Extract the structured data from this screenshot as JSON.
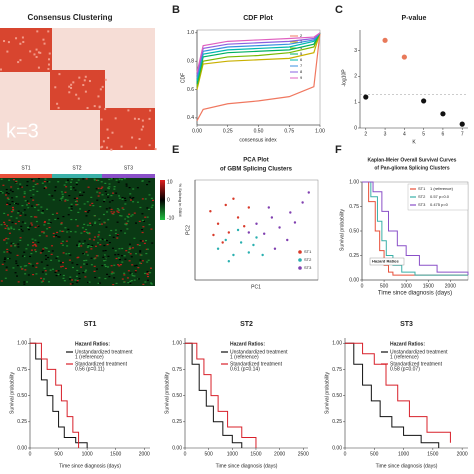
{
  "panel_labels": [
    "B",
    "C",
    "E",
    "F"
  ],
  "a": {
    "title": "Consensus Clustering",
    "annotation": "k=3"
  },
  "b": {
    "type": "line",
    "title": "CDF Plot",
    "xlabel": "consensus index",
    "ylabel": "CDF",
    "xlim": [
      0,
      1
    ],
    "ylim": [
      0.35,
      1.02
    ],
    "xticks": [
      {
        "value": 0,
        "label": "0.00"
      },
      {
        "value": 0.25,
        "label": "0.25"
      },
      {
        "value": 0.5,
        "label": "0.50"
      },
      {
        "value": 0.75,
        "label": "0.75"
      },
      {
        "value": 1,
        "label": "1.00"
      }
    ],
    "yticks": [
      0.4,
      0.6,
      0.8,
      {
        "value": 1,
        "label": "1.0"
      }
    ],
    "x": [
      0,
      0.05,
      0.25,
      0.5,
      0.75,
      0.95,
      1
    ],
    "series": [
      {
        "name": "2",
        "color": "#f07860",
        "values": [
          0.38,
          0.46,
          0.5,
          0.52,
          0.55,
          0.62,
          1
        ]
      },
      {
        "name": "3",
        "color": "#c9b000",
        "values": [
          0.6,
          0.78,
          0.8,
          0.81,
          0.82,
          0.86,
          1
        ]
      },
      {
        "name": "4",
        "color": "#7ab800",
        "values": [
          0.62,
          0.8,
          0.83,
          0.84,
          0.86,
          0.9,
          1
        ]
      },
      {
        "name": "5",
        "color": "#00b060",
        "values": [
          0.64,
          0.83,
          0.86,
          0.87,
          0.88,
          0.92,
          1
        ]
      },
      {
        "name": "6",
        "color": "#00b8b0",
        "values": [
          0.66,
          0.85,
          0.88,
          0.89,
          0.9,
          0.94,
          1
        ]
      },
      {
        "name": "7",
        "color": "#3a90e0",
        "values": [
          0.68,
          0.87,
          0.9,
          0.91,
          0.92,
          0.95,
          1
        ]
      },
      {
        "name": "8",
        "color": "#8a60e0",
        "values": [
          0.7,
          0.89,
          0.92,
          0.93,
          0.94,
          0.96,
          1
        ]
      },
      {
        "name": "9",
        "color": "#e060c0",
        "values": [
          0.72,
          0.91,
          0.94,
          0.95,
          0.96,
          0.97,
          1
        ]
      }
    ]
  },
  "c": {
    "type": "scatter",
    "title": "P-value",
    "xlabel": "K",
    "ylabel": "-log10P",
    "xlim": [
      1.7,
      7.3
    ],
    "ylim": [
      0,
      3.8
    ],
    "xticks": [
      2,
      3,
      4,
      5,
      6,
      7
    ],
    "yticks": [
      0,
      1,
      2,
      3
    ],
    "x": [
      2,
      3,
      4,
      5,
      6,
      7
    ],
    "values": [
      1.2,
      3.4,
      2.75,
      1.05,
      0.55,
      0.15
    ],
    "colors": [
      "#111",
      "#e8795a",
      "#e8795a",
      "#111",
      "#111",
      "#111"
    ],
    "threshold": 1.3
  },
  "d": {
    "groups": [
      "ST1",
      "ST2",
      "ST3"
    ],
    "group_colors": [
      "#e8503a",
      "#3ab0a8",
      "#8a50c8"
    ],
    "colorbar_ticks": [
      10,
      0,
      -10
    ],
    "colorbar_label": "% Splicing in GBM"
  },
  "e": {
    "type": "scatter",
    "title": "PCA Plot",
    "subtitle": "of GBM Splicing Clusters",
    "xlabel": "PC1",
    "ylabel": "PC2",
    "xlim": [
      -4,
      4
    ],
    "ylim": [
      -4,
      4
    ],
    "series": [
      {
        "name": "ST1",
        "color": "#d83a2a",
        "x": [
          -3,
          -2.5,
          -2,
          -1.8,
          -1.2,
          -0.8,
          -2.2,
          -1.5,
          -0.5,
          -2.8
        ],
        "values": [
          1.5,
          0.5,
          2,
          -0.2,
          1,
          0.3,
          -1,
          2.5,
          1.8,
          -0.4
        ]
      },
      {
        "name": "ST2",
        "color": "#2ab0b0",
        "x": [
          -2.5,
          -2,
          -1.5,
          -1,
          -0.5,
          0,
          -1.8,
          -1.2,
          -0.2,
          0.4
        ],
        "values": [
          -1.5,
          -0.8,
          -2,
          -1,
          -1.8,
          -0.6,
          -2.5,
          0,
          -1.2,
          -2
        ]
      },
      {
        "name": "ST3",
        "color": "#8040b0",
        "x": [
          0,
          0.5,
          1,
          1.5,
          2,
          2.5,
          3,
          1.2,
          0.8,
          2.2,
          -0.5,
          3.4
        ],
        "values": [
          0.5,
          -0.3,
          1,
          0.2,
          -0.8,
          0.6,
          2.2,
          -1.5,
          1.8,
          1.4,
          -0.2,
          3
        ]
      }
    ]
  },
  "f": {
    "type": "line",
    "title": "Kaplan-Meier Overall Survival Curves",
    "subtitle": "of Pan-glioma Splicing Clusters",
    "xlabel": "Time since diagnosis (days)",
    "ylabel": "Survival probability",
    "xlim": [
      0,
      2400
    ],
    "ylim": [
      0,
      1
    ],
    "xticks": [
      0,
      500,
      1000,
      1500,
      2000
    ],
    "yticks": [
      {
        "value": 0,
        "label": "0.00"
      },
      {
        "value": 0.25,
        "label": "0.25"
      },
      {
        "value": 0.5,
        "label": "0.50"
      },
      {
        "value": 0.75,
        "label": "0.75"
      },
      {
        "value": 1,
        "label": "1.00"
      }
    ],
    "legend_title": "Hazard Ratios",
    "series": [
      {
        "name": "ST1",
        "hr": "1 (reference)",
        "color": "#e8503a",
        "x": [
          0,
          150,
          300,
          400,
          500,
          600,
          700,
          900,
          2400
        ],
        "values": [
          1,
          0.8,
          0.5,
          0.3,
          0.15,
          0.08,
          0.05,
          0.05,
          0.05
        ]
      },
      {
        "name": "ST2",
        "hr": "0.57 p=0.0",
        "color": "#3ab0a8",
        "x": [
          0,
          200,
          350,
          450,
          550,
          700,
          900,
          1200,
          2400
        ],
        "values": [
          1,
          0.85,
          0.6,
          0.4,
          0.25,
          0.15,
          0.08,
          0.05,
          0.05
        ]
      },
      {
        "name": "ST3",
        "hr": "0.475 p=0",
        "color": "#8a50c8",
        "x": [
          0,
          250,
          450,
          600,
          800,
          1000,
          1300,
          1700,
          2400
        ],
        "values": [
          1,
          0.9,
          0.7,
          0.5,
          0.35,
          0.25,
          0.15,
          0.08,
          0.05
        ]
      }
    ]
  },
  "bottom": [
    {
      "type": "line",
      "title": "ST1",
      "xlim": [
        0,
        2100
      ],
      "xticks": [
        0,
        500,
        1000,
        1500,
        2000
      ],
      "ylabel": "Survival probability",
      "series": [
        {
          "name": "Unstandardized treatment",
          "hr": "1 (reference)",
          "color": "#111",
          "x": [
            0,
            100,
            200,
            300,
            400,
            500,
            600,
            800,
            1000
          ],
          "values": [
            1,
            0.85,
            0.65,
            0.5,
            0.35,
            0.2,
            0.1,
            0.05,
            0
          ]
        },
        {
          "name": "Standardized treatment",
          "hr": "0.56 (p=0.11)",
          "color": "#d8202a",
          "x": [
            0,
            200,
            300,
            450,
            550,
            650,
            750,
            850
          ],
          "values": [
            1,
            0.85,
            0.75,
            0.6,
            0.45,
            0.3,
            0.15,
            0
          ]
        }
      ]
    },
    {
      "type": "line",
      "title": "ST2",
      "xlim": [
        0,
        2600
      ],
      "xticks": [
        0,
        500,
        1000,
        1500,
        2000,
        2500
      ],
      "ylabel": "Survival probability",
      "series": [
        {
          "name": "Unstandardized treatment",
          "hr": "1 (reference)",
          "color": "#111",
          "x": [
            0,
            150,
            300,
            450,
            600,
            800,
            1000,
            1200
          ],
          "values": [
            1,
            0.8,
            0.55,
            0.4,
            0.25,
            0.12,
            0.05,
            0
          ]
        },
        {
          "name": "Standardized treatment",
          "hr": "0.61 (p=0.14)",
          "color": "#d8202a",
          "x": [
            0,
            250,
            400,
            550,
            700,
            900,
            1200,
            1500
          ],
          "values": [
            1,
            0.85,
            0.7,
            0.5,
            0.35,
            0.2,
            0.1,
            0
          ]
        }
      ]
    },
    {
      "type": "line",
      "title": "ST3",
      "xlim": [
        0,
        2100
      ],
      "xticks": [
        0,
        500,
        1000,
        1500,
        2000
      ],
      "ylabel": "Survival probability",
      "series": [
        {
          "name": "Unstandardized treatment",
          "hr": "1 (reference)",
          "color": "#111",
          "x": [
            0,
            150,
            300,
            450,
            600,
            800,
            1000,
            1300,
            1600
          ],
          "values": [
            1,
            0.8,
            0.6,
            0.45,
            0.3,
            0.2,
            0.12,
            0.05,
            0
          ]
        },
        {
          "name": "Standardized treatment",
          "hr": "0.58 (p=0.07)",
          "color": "#d8202a",
          "x": [
            0,
            300,
            500,
            700,
            900,
            1100,
            1400,
            1800
          ],
          "values": [
            1,
            0.9,
            0.8,
            0.6,
            0.45,
            0.3,
            0.15,
            0.05
          ]
        }
      ]
    }
  ],
  "bottom_common": {
    "xlabel": "Time since diagnosis (days)",
    "legend_title": "Hazard Ratios:",
    "yticks": [
      {
        "value": 0,
        "label": "0.00"
      },
      {
        "value": 0.25,
        "label": "0.25"
      },
      {
        "value": 0.5,
        "label": "0.50"
      },
      {
        "value": 0.75,
        "label": "0.75"
      },
      {
        "value": 1,
        "label": "1.00"
      }
    ]
  }
}
